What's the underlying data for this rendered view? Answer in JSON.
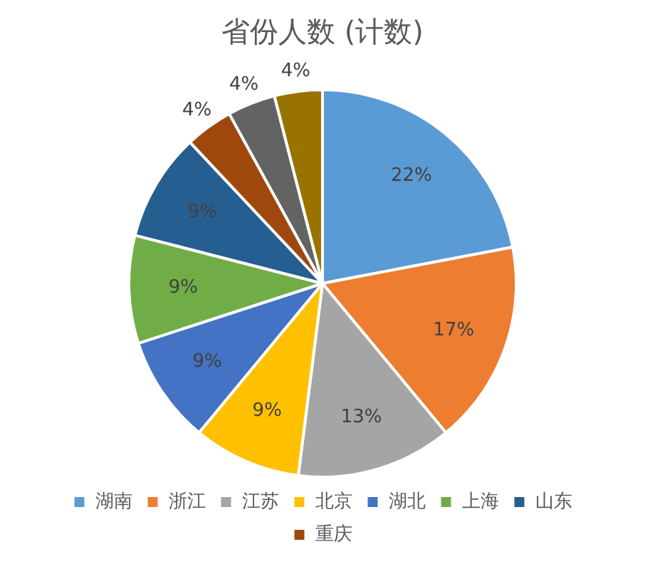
{
  "chart_data": {
    "type": "pie",
    "title": "省份人数 (计数)",
    "categories": [
      "湖南",
      "浙江",
      "江苏",
      "北京",
      "湖北",
      "上海",
      "山东",
      "重庆",
      null,
      null
    ],
    "values": [
      22,
      17,
      13,
      9,
      9,
      9,
      9,
      4,
      4,
      4
    ],
    "colors": [
      "#5b9bd5",
      "#ed7d31",
      "#a5a5a5",
      "#ffc000",
      "#4472c4",
      "#70ad47",
      "#255e91",
      "#9e480e",
      "#636363",
      "#997300"
    ],
    "value_labels": [
      "22%",
      "17%",
      "13%",
      "9%",
      "9%",
      "9%",
      "9%",
      "4%",
      "4%",
      "4%"
    ],
    "legend": "bottom"
  }
}
